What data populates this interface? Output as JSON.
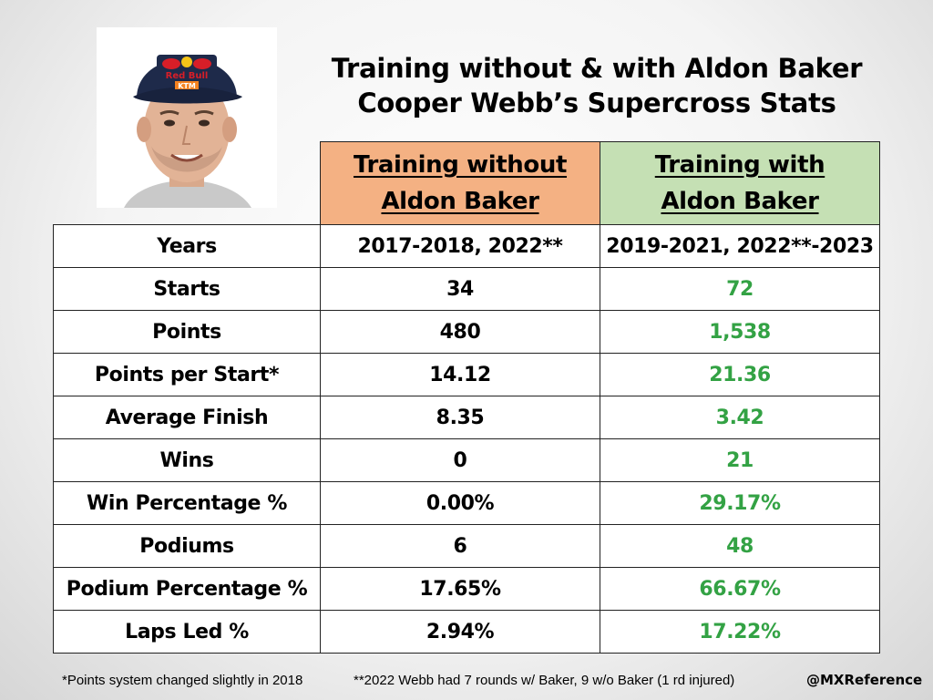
{
  "title": {
    "line1": "Training without & with Aldon Baker",
    "line2": "Cooper Webb’s Supercross Stats"
  },
  "colors": {
    "without_header": "#f4b183",
    "with_header": "#c5e0b4",
    "with_values": "#33a244"
  },
  "portrait": {
    "cap_text_1": "Red Bull",
    "cap_text_2": "KTM"
  },
  "table": {
    "headers": {
      "without": {
        "line1": "Training without",
        "line2": "Aldon Baker"
      },
      "with": {
        "line1": "Training with",
        "line2": "Aldon Baker"
      }
    },
    "rows": [
      {
        "label": "Years",
        "without": "2017-2018, 2022**",
        "with": "2019-2021, 2022**-2023"
      },
      {
        "label": "Starts",
        "without": "34",
        "with": "72"
      },
      {
        "label": "Points",
        "without": "480",
        "with": "1,538"
      },
      {
        "label": "Points per Start*",
        "without": "14.12",
        "with": "21.36"
      },
      {
        "label": "Average Finish",
        "without": "8.35",
        "with": "3.42"
      },
      {
        "label": "Wins",
        "without": "0",
        "with": "21"
      },
      {
        "label": "Win Percentage %",
        "without": "0.00%",
        "with": "29.17%"
      },
      {
        "label": "Podiums",
        "without": "6",
        "with": "48"
      },
      {
        "label": "Podium Percentage %",
        "without": "17.65%",
        "with": "66.67%"
      },
      {
        "label": "Laps Led %",
        "without": "2.94%",
        "with": "17.22%"
      }
    ]
  },
  "footer": {
    "note1": "*Points system changed slightly in 2018",
    "note2": "**2022 Webb had 7 rounds w/ Baker, 9 w/o Baker (1 rd injured)",
    "handle": "@MXReference"
  }
}
